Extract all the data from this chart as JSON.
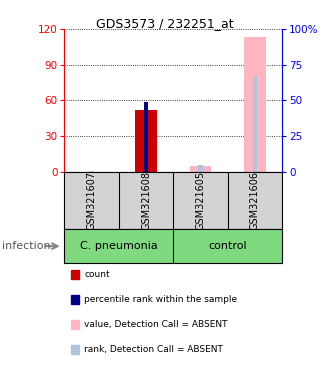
{
  "title": "GDS3573 / 232251_at",
  "samples": [
    "GSM321607",
    "GSM321608",
    "GSM321605",
    "GSM321606"
  ],
  "group_labels": [
    "C. pneumonia",
    "control"
  ],
  "count_values": [
    null,
    52,
    null,
    null
  ],
  "percentile_values": [
    null,
    59,
    null,
    null
  ],
  "absent_value_values": [
    null,
    null,
    5,
    113
  ],
  "absent_rank_values": [
    1,
    null,
    6,
    80
  ],
  "ylim_left": [
    0,
    120
  ],
  "ylim_right": [
    0,
    100
  ],
  "yticks_left": [
    0,
    30,
    60,
    90,
    120
  ],
  "yticks_right": [
    0,
    25,
    50,
    75,
    100
  ],
  "ytick_labels_right": [
    "0",
    "25",
    "50",
    "75",
    "100%"
  ],
  "color_count": "#cc0000",
  "color_percentile": "#00008B",
  "color_absent_value": "#FFB6C1",
  "color_absent_rank": "#B0C4DE",
  "legend_items": [
    {
      "label": "count",
      "color": "#cc0000"
    },
    {
      "label": "percentile rank within the sample",
      "color": "#00008B"
    },
    {
      "label": "value, Detection Call = ABSENT",
      "color": "#FFB6C1"
    },
    {
      "label": "rank, Detection Call = ABSENT",
      "color": "#B0C4DE"
    }
  ],
  "bar_width": 0.4,
  "plot_bg": "#d3d3d3",
  "bar_area_bg": "#ffffff",
  "green": "#7FD97F"
}
